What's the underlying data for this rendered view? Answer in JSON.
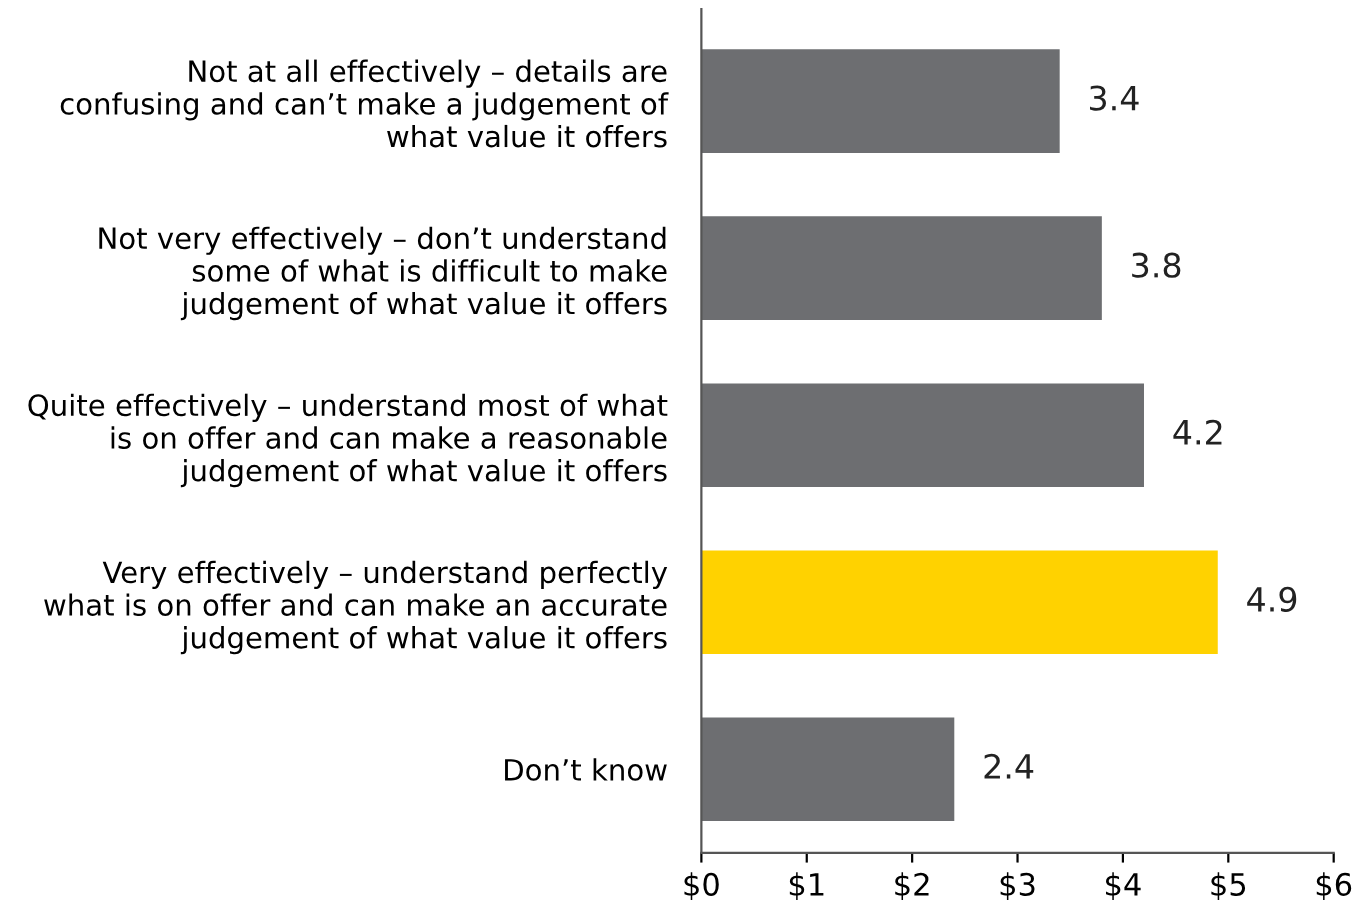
{
  "chart_data": {
    "type": "bar",
    "orientation": "horizontal",
    "categories": [
      "Not at all effectively – details are\nconfusing and can’t make a judgement of\nwhat value it offers",
      "Not very effectively – don’t understand\nsome of what is difficult to make\njudgement of what value it offers",
      "Quite effectively – understand most of what\nis on offer and can make a reasonable\njudgement of what value it offers",
      "Very effectively – understand perfectly\nwhat is on offer and can make an accurate\njudgement of what value it offers",
      "Don’t know"
    ],
    "values": [
      3.4,
      3.8,
      4.2,
      4.9,
      2.4
    ],
    "colors": [
      "#6d6e71",
      "#6d6e71",
      "#6d6e71",
      "#ffd200",
      "#6d6e71"
    ],
    "xlim": [
      0,
      6
    ],
    "xticks": [
      {
        "value": 0,
        "label": "$0"
      },
      {
        "value": 1,
        "label": "$1"
      },
      {
        "value": 2,
        "label": "$2"
      },
      {
        "value": 3,
        "label": "$3"
      },
      {
        "value": 4,
        "label": "$4"
      },
      {
        "value": 5,
        "label": "$5"
      },
      {
        "value": 6,
        "label": "$6"
      }
    ],
    "data_labels": true,
    "grid": false,
    "legend": false
  }
}
